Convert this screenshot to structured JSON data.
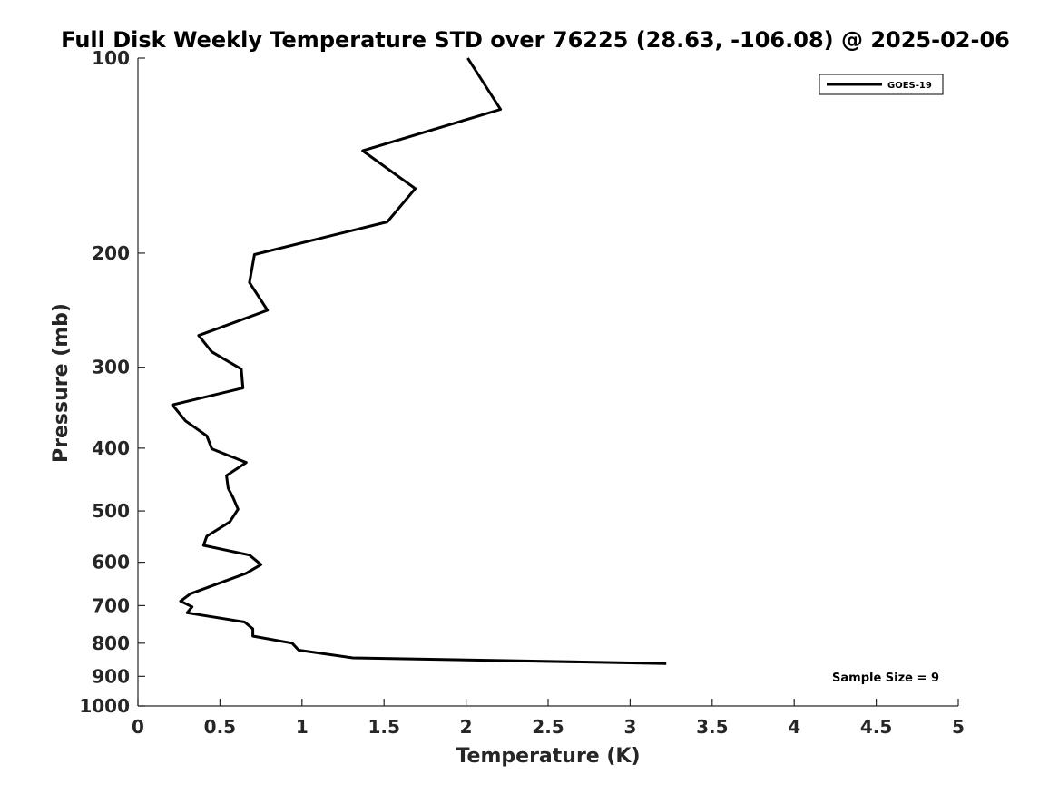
{
  "chart_data": {
    "type": "line",
    "title": "Full Disk Weekly Temperature STD over 76225 (28.63, -106.08) @ 2025-02-06",
    "xlabel": "Temperature (K)",
    "ylabel": "Pressure (mb)",
    "xlim": [
      0,
      5
    ],
    "ylim": [
      100,
      1000
    ],
    "y_scale": "log",
    "y_reversed": true,
    "x_ticks": [
      0,
      0.5,
      1,
      1.5,
      2,
      2.5,
      3,
      3.5,
      4,
      4.5,
      5
    ],
    "x_tick_labels": [
      "0",
      "0.5",
      "1",
      "1.5",
      "2",
      "2.5",
      "3",
      "3.5",
      "4",
      "4.5",
      "5"
    ],
    "y_ticks": [
      100,
      200,
      300,
      400,
      500,
      600,
      700,
      800,
      900,
      1000
    ],
    "y_tick_labels": [
      "100",
      "200",
      "300",
      "400",
      "500",
      "600",
      "700",
      "800",
      "900",
      "1000"
    ],
    "grid": false,
    "legend_position": "top-right",
    "series": [
      {
        "name": "GOES-19",
        "color": "#000000",
        "points": [
          {
            "t": 2.01,
            "p": 100
          },
          {
            "t": 2.21,
            "p": 120
          },
          {
            "t": 1.37,
            "p": 139
          },
          {
            "t": 1.69,
            "p": 159
          },
          {
            "t": 1.52,
            "p": 179
          },
          {
            "t": 0.71,
            "p": 201
          },
          {
            "t": 0.68,
            "p": 222
          },
          {
            "t": 0.79,
            "p": 245
          },
          {
            "t": 0.37,
            "p": 268
          },
          {
            "t": 0.45,
            "p": 284
          },
          {
            "t": 0.63,
            "p": 302
          },
          {
            "t": 0.64,
            "p": 323
          },
          {
            "t": 0.21,
            "p": 343
          },
          {
            "t": 0.29,
            "p": 363
          },
          {
            "t": 0.42,
            "p": 383
          },
          {
            "t": 0.45,
            "p": 401
          },
          {
            "t": 0.66,
            "p": 421
          },
          {
            "t": 0.54,
            "p": 441
          },
          {
            "t": 0.55,
            "p": 461
          },
          {
            "t": 0.58,
            "p": 477
          },
          {
            "t": 0.61,
            "p": 497
          },
          {
            "t": 0.56,
            "p": 520
          },
          {
            "t": 0.42,
            "p": 547
          },
          {
            "t": 0.4,
            "p": 565
          },
          {
            "t": 0.68,
            "p": 585
          },
          {
            "t": 0.75,
            "p": 605
          },
          {
            "t": 0.66,
            "p": 624
          },
          {
            "t": 0.32,
            "p": 671
          },
          {
            "t": 0.26,
            "p": 689
          },
          {
            "t": 0.33,
            "p": 703
          },
          {
            "t": 0.3,
            "p": 718
          },
          {
            "t": 0.65,
            "p": 742
          },
          {
            "t": 0.7,
            "p": 760
          },
          {
            "t": 0.7,
            "p": 780
          },
          {
            "t": 0.94,
            "p": 800
          },
          {
            "t": 0.98,
            "p": 820
          },
          {
            "t": 1.31,
            "p": 843
          },
          {
            "t": 3.22,
            "p": 860
          }
        ]
      }
    ],
    "annotations": [
      {
        "text": "Sample Size = 9",
        "position": "bottom-right"
      }
    ]
  }
}
